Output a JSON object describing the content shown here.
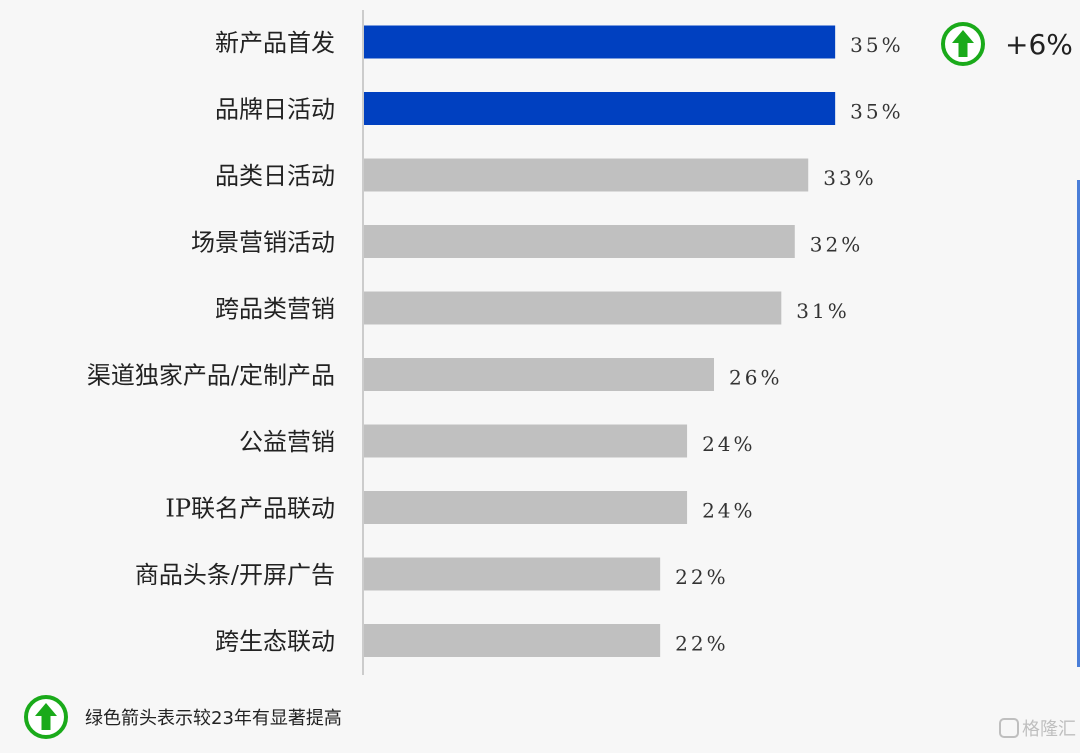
{
  "chart_data": {
    "type": "bar",
    "orientation": "horizontal",
    "categories": [
      "新产品首发",
      "品牌日活动",
      "品类日活动",
      "场景营销活动",
      "跨品类营销",
      "渠道独家产品/定制产品",
      "公益营销",
      "IP联名产品联动",
      "商品头条/开屏广告",
      "跨生态联动"
    ],
    "values": [
      35,
      35,
      33,
      32,
      31,
      26,
      24,
      24,
      22,
      22
    ],
    "value_labels": [
      "35%",
      "35%",
      "33%",
      "32%",
      "31%",
      "26%",
      "24%",
      "24%",
      "22%",
      "22%"
    ],
    "highlighted": [
      true,
      true,
      false,
      false,
      false,
      false,
      false,
      false,
      false,
      false
    ],
    "xlim": [
      0,
      52
    ],
    "grid": false,
    "colors": {
      "highlight": "#0040c0",
      "default": "#c0c0c0",
      "axis": "#cccccc",
      "arrow": "#1aaa1a"
    },
    "badge": {
      "icon": "up-arrow-icon",
      "text": "+6%",
      "placement": "top-right"
    },
    "legend": {
      "icon": "up-arrow-icon",
      "text": "绿色箭头表示较23年有显著提高",
      "placement": "bottom-left"
    },
    "watermark": "格隆汇"
  }
}
